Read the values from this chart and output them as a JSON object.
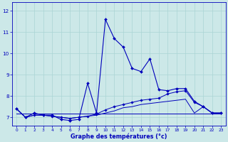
{
  "xlabel": "Graphe des températures (°c)",
  "xlim": [
    -0.5,
    23.5
  ],
  "ylim": [
    6.6,
    12.4
  ],
  "yticks": [
    7,
    8,
    9,
    10,
    11,
    12
  ],
  "xticks": [
    0,
    1,
    2,
    3,
    4,
    5,
    6,
    7,
    8,
    9,
    10,
    11,
    12,
    13,
    14,
    15,
    16,
    17,
    18,
    19,
    20,
    21,
    22,
    23
  ],
  "bg_color": "#cce8e8",
  "line_color": "#0000bb",
  "line1_x": [
    0,
    1,
    2,
    3,
    4,
    5,
    6,
    7,
    8,
    9,
    10,
    11,
    12,
    13,
    14,
    15,
    16,
    17,
    18,
    19,
    20,
    21,
    22,
    23
  ],
  "line1_y": [
    7.4,
    7.0,
    7.2,
    7.1,
    7.1,
    6.9,
    6.85,
    6.9,
    8.6,
    7.2,
    11.6,
    10.7,
    10.3,
    9.3,
    9.15,
    9.75,
    8.3,
    8.25,
    8.35,
    8.35,
    7.75,
    7.5,
    7.2,
    7.2
  ],
  "line2_x": [
    0,
    1,
    2,
    3,
    4,
    5,
    6,
    7,
    8,
    9,
    10,
    11,
    12,
    13,
    14,
    15,
    16,
    17,
    18,
    19,
    20,
    21,
    22,
    23
  ],
  "line2_y": [
    7.4,
    7.0,
    7.1,
    7.1,
    7.05,
    7.0,
    6.95,
    7.0,
    7.05,
    7.15,
    7.35,
    7.5,
    7.6,
    7.7,
    7.8,
    7.85,
    7.9,
    8.1,
    8.2,
    8.25,
    7.7,
    7.5,
    7.2,
    7.2
  ],
  "line3_x": [
    0,
    1,
    2,
    3,
    4,
    5,
    6,
    7,
    8,
    9,
    10,
    11,
    12,
    13,
    14,
    15,
    16,
    17,
    18,
    19,
    20,
    21,
    22,
    23
  ],
  "line3_y": [
    7.4,
    7.0,
    7.1,
    7.1,
    7.05,
    7.0,
    6.95,
    7.0,
    7.05,
    7.1,
    7.2,
    7.3,
    7.45,
    7.5,
    7.6,
    7.65,
    7.7,
    7.75,
    7.8,
    7.85,
    7.2,
    7.5,
    7.2,
    7.2
  ],
  "line4_x": [
    0,
    23
  ],
  "line4_y": [
    7.18,
    7.18
  ],
  "grid_color": "#aad4d4",
  "xlabel_fontsize": 5.8,
  "xtick_fontsize": 4.2,
  "ytick_fontsize": 5.2
}
